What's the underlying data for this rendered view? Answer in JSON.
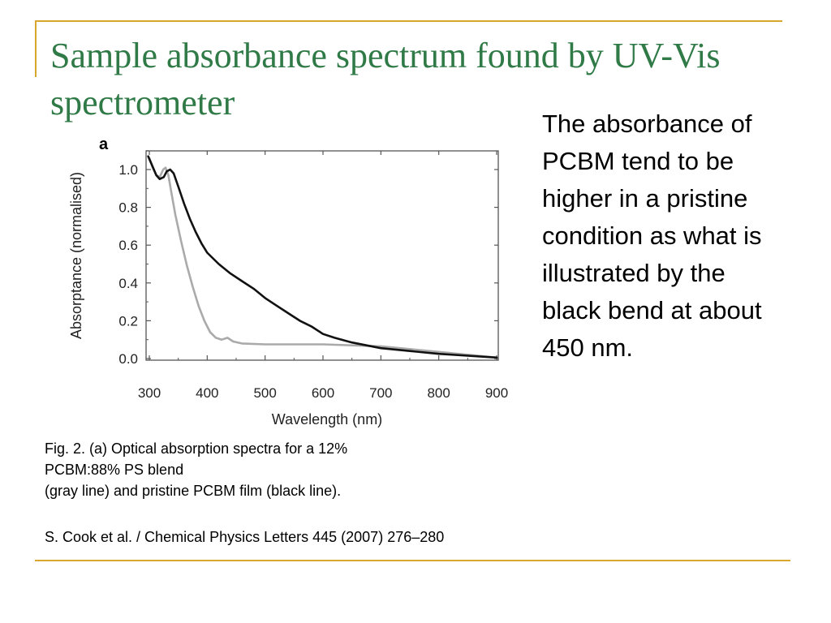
{
  "slide": {
    "title": "Sample absorbance spectrum found by UV-Vis spectrometer",
    "side_text": "The absorbance of PCBM tend to be higher in a pristine condition as what is illustrated by the black bend at about 450 nm.",
    "caption_lines": [
      "Fig. 2. (a) Optical absorption spectra for a 12%",
      "PCBM:88% PS blend",
      "(gray line) and pristine PCBM film (black line)."
    ],
    "citation": "S. Cook et al. / Chemical Physics Letters 445 (2007) 276–280",
    "accent_color": "#d9a62e",
    "title_color": "#2f7a46"
  },
  "chart_data": {
    "type": "line",
    "panel_label": "a",
    "xlabel": "Wavelength (nm)",
    "ylabel": "Absorptance (normalised)",
    "xlim": [
      300,
      900
    ],
    "ylim": [
      0.0,
      1.1
    ],
    "x_ticks": [
      300,
      400,
      500,
      600,
      700,
      800,
      900
    ],
    "y_ticks": [
      0.0,
      0.2,
      0.4,
      0.6,
      0.8,
      1.0
    ],
    "y_tick_labels": [
      "0.0",
      "0.2",
      "0.4",
      "0.6",
      "0.8",
      "1.0"
    ],
    "grid": false,
    "series": [
      {
        "color": "#111111",
        "points": [
          [
            298,
            1.07
          ],
          [
            305,
            1.02
          ],
          [
            312,
            0.97
          ],
          [
            318,
            0.95
          ],
          [
            325,
            0.96
          ],
          [
            330,
            0.99
          ],
          [
            336,
            1.0
          ],
          [
            342,
            0.98
          ],
          [
            350,
            0.91
          ],
          [
            360,
            0.82
          ],
          [
            370,
            0.74
          ],
          [
            380,
            0.67
          ],
          [
            390,
            0.61
          ],
          [
            400,
            0.56
          ],
          [
            420,
            0.5
          ],
          [
            440,
            0.45
          ],
          [
            460,
            0.41
          ],
          [
            480,
            0.37
          ],
          [
            500,
            0.32
          ],
          [
            520,
            0.28
          ],
          [
            540,
            0.24
          ],
          [
            560,
            0.2
          ],
          [
            580,
            0.17
          ],
          [
            600,
            0.13
          ],
          [
            620,
            0.11
          ],
          [
            650,
            0.085
          ],
          [
            700,
            0.055
          ],
          [
            750,
            0.04
          ],
          [
            800,
            0.025
          ],
          [
            850,
            0.015
          ],
          [
            900,
            0.005
          ]
        ]
      },
      {
        "color": "#aaaaaa",
        "points": [
          [
            300,
            1.06
          ],
          [
            306,
            1.01
          ],
          [
            312,
            0.97
          ],
          [
            318,
            0.96
          ],
          [
            324,
            1.0
          ],
          [
            328,
            1.01
          ],
          [
            333,
            0.97
          ],
          [
            338,
            0.88
          ],
          [
            345,
            0.76
          ],
          [
            355,
            0.62
          ],
          [
            365,
            0.49
          ],
          [
            375,
            0.38
          ],
          [
            385,
            0.28
          ],
          [
            395,
            0.2
          ],
          [
            405,
            0.14
          ],
          [
            415,
            0.11
          ],
          [
            425,
            0.1
          ],
          [
            435,
            0.11
          ],
          [
            445,
            0.09
          ],
          [
            460,
            0.08
          ],
          [
            500,
            0.075
          ],
          [
            600,
            0.075
          ],
          [
            700,
            0.065
          ],
          [
            800,
            0.035
          ],
          [
            850,
            0.02
          ],
          [
            900,
            0.005
          ]
        ]
      }
    ]
  }
}
